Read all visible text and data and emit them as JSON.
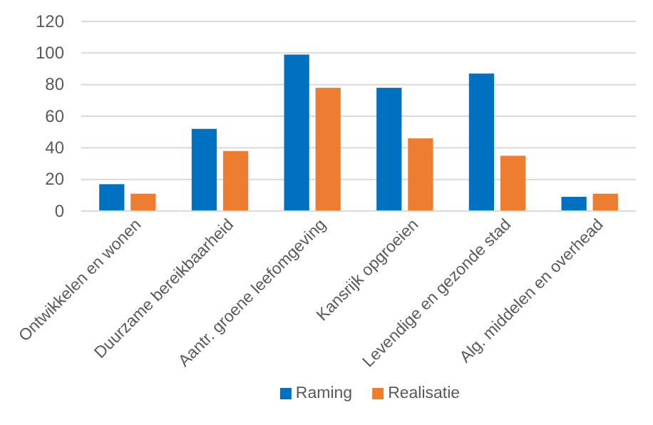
{
  "chart_data": {
    "type": "bar",
    "categories": [
      "Ontwikkelen en wonen",
      "Duurzame bereikbaarheid",
      "Aantr. groene leefomgeving",
      "Kansrijk opgroeien",
      "Levendige en gezonde stad",
      "Alg. middelen en overhead"
    ],
    "series": [
      {
        "name": "Raming",
        "color": "#0070c0",
        "values": [
          17,
          52,
          99,
          78,
          87,
          9
        ]
      },
      {
        "name": "Realisatie",
        "color": "#ed7d31",
        "values": [
          11,
          38,
          78,
          46,
          35,
          11
        ]
      }
    ],
    "ylim": [
      0,
      120
    ],
    "yticks": [
      0,
      20,
      40,
      60,
      80,
      100,
      120
    ],
    "grid": "y",
    "legend": "bottom"
  }
}
